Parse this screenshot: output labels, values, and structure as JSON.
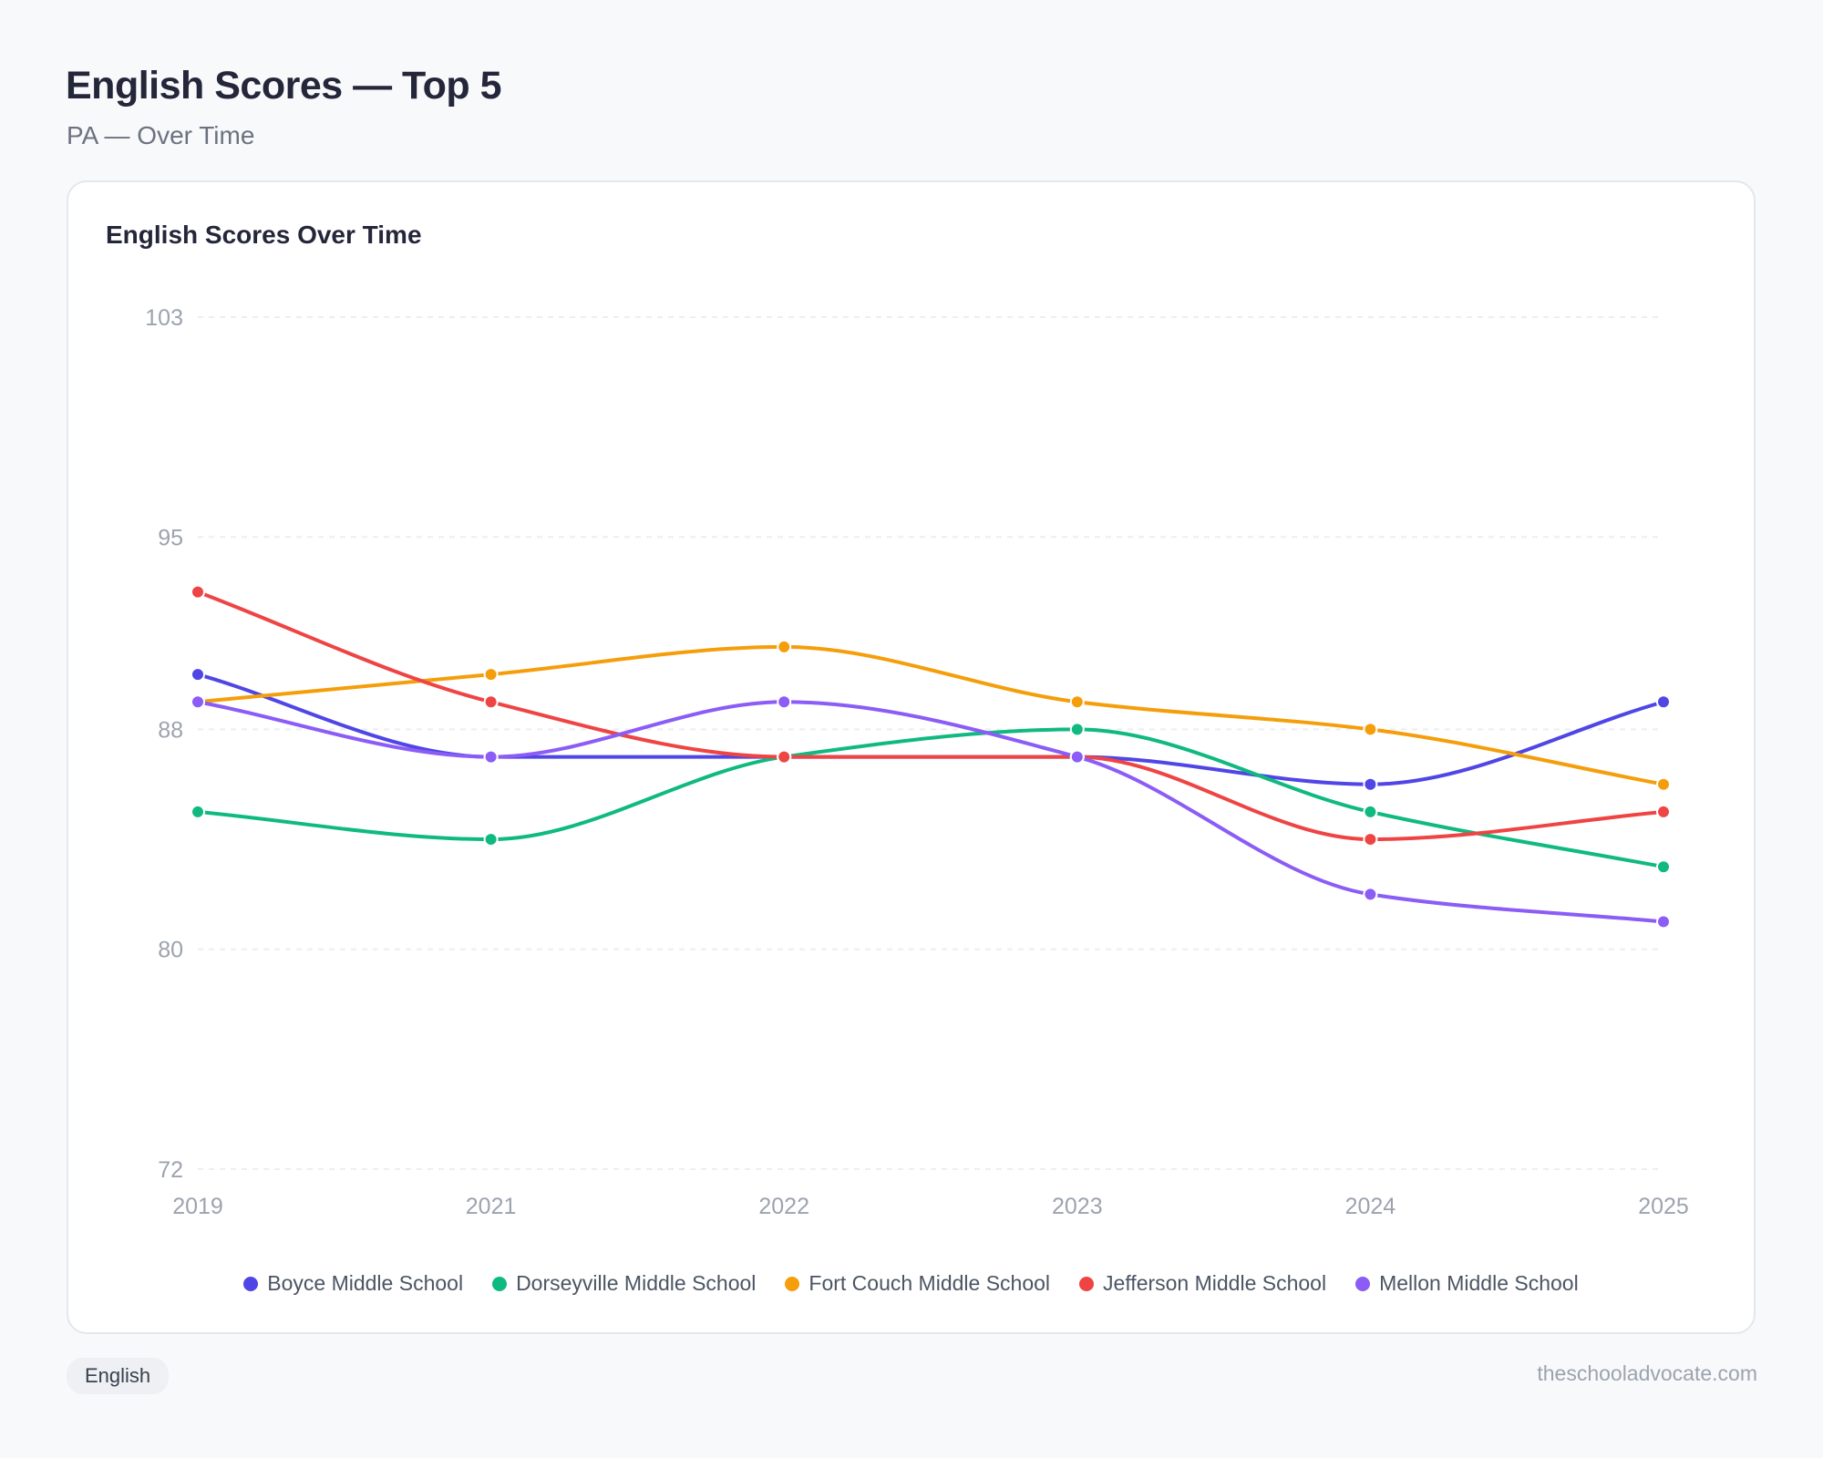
{
  "header": {
    "title": "English Scores — Top 5",
    "subtitle": "PA — Over Time"
  },
  "card": {
    "title": "English Scores Over Time"
  },
  "footer": {
    "tag": "English",
    "site": "theschooladvocate.com"
  },
  "chart_data": {
    "type": "line",
    "title": "English Scores Over Time",
    "xlabel": "",
    "ylabel": "",
    "x": [
      "2019",
      "2021",
      "2022",
      "2023",
      "2024",
      "2025"
    ],
    "ylim": [
      72,
      103
    ],
    "yticks": [
      72,
      80,
      88,
      95,
      103
    ],
    "grid": true,
    "legend_position": "bottom",
    "curve": "smooth",
    "series": [
      {
        "name": "Boyce Middle School",
        "color": "#4f46e5",
        "values": [
          90,
          87,
          87,
          87,
          86,
          89
        ]
      },
      {
        "name": "Dorseyville Middle School",
        "color": "#10b981",
        "values": [
          85,
          84,
          87,
          88,
          85,
          83
        ]
      },
      {
        "name": "Fort Couch Middle School",
        "color": "#f59e0b",
        "values": [
          89,
          90,
          91,
          89,
          88,
          86
        ]
      },
      {
        "name": "Jefferson Middle School",
        "color": "#ef4444",
        "values": [
          93,
          89,
          87,
          87,
          84,
          85
        ]
      },
      {
        "name": "Mellon Middle School",
        "color": "#8b5cf6",
        "values": [
          89,
          87,
          89,
          87,
          82,
          81
        ]
      }
    ]
  }
}
